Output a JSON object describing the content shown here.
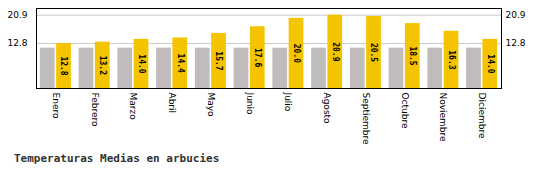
{
  "chart_data": {
    "type": "bar",
    "title": "Temperaturas Medias en arbucies",
    "categories": [
      "Enero",
      "Febrero",
      "Marzo",
      "Abril",
      "Mayo",
      "Junio",
      "Julio",
      "Agosto",
      "Septiembre",
      "Octubre",
      "Noviembre",
      "Diciembre"
    ],
    "series": [
      {
        "color": "#C0BCBC",
        "values": [
          11.5,
          11.5,
          11.5,
          11.5,
          11.5,
          11.5,
          11.5,
          11.5,
          11.5,
          11.5,
          11.5,
          11.5
        ]
      },
      {
        "color": "#F5C400",
        "values": [
          12.8,
          13.2,
          14.0,
          14.4,
          15.7,
          17.6,
          20.0,
          20.9,
          20.5,
          18.5,
          16.3,
          14.0
        ],
        "data_labels": true,
        "value_labels": [
          "12.8",
          "13.2",
          "14.0",
          "14.4",
          "15.7",
          "17.6",
          "20.0",
          "20.9",
          "20.5",
          "18.5",
          "16.3",
          "14.0"
        ]
      }
    ],
    "ylim": [
      0,
      22.8
    ],
    "yticks": [
      12.8,
      20.9
    ],
    "y2lim": [
      0,
      22.8
    ],
    "y2ticks": [
      12.8,
      20.9
    ],
    "grid": true
  }
}
